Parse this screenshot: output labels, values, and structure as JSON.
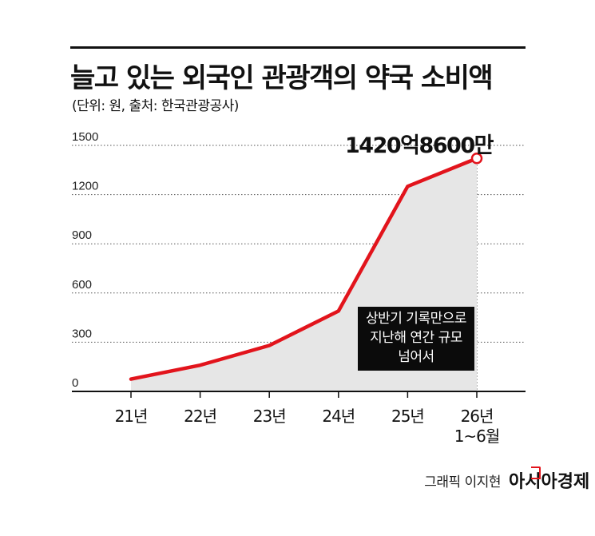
{
  "title": "늘고 있는 외국인 관광객의 약국 소비액",
  "subtitle": "(단위: 원, 출처: 한국관광공사)",
  "credit": "그래픽 이지현",
  "brand": "아시아경제",
  "colors": {
    "line": "#e2141c",
    "area": "#e6e6e6",
    "text": "#111111",
    "callout_bg": "#0b0b0b"
  },
  "annotation": {
    "peak_label": "1420억8600만",
    "callout_lines": [
      "상반기 기록만으로",
      "지난해 연간 규모",
      "넘어서"
    ]
  },
  "chart_data": {
    "type": "area",
    "title": "늘고 있는 외국인 관광객의 약국 소비액",
    "categories": [
      "21년",
      "22년",
      "23년",
      "24년",
      "25년",
      "26년 1~6월"
    ],
    "category_lines": [
      [
        "21년"
      ],
      [
        "22년"
      ],
      [
        "23년"
      ],
      [
        "24년"
      ],
      [
        "25년"
      ],
      [
        "26년",
        "1~6월"
      ]
    ],
    "series": [
      {
        "values": [
          75,
          160,
          280,
          490,
          1250,
          1420.86
        ]
      }
    ],
    "yticks": [
      0,
      300,
      600,
      900,
      1200,
      1500
    ],
    "ylim": [
      0,
      1500
    ],
    "grid": "dotted-horizontal",
    "xlabel": "",
    "ylabel": ""
  }
}
